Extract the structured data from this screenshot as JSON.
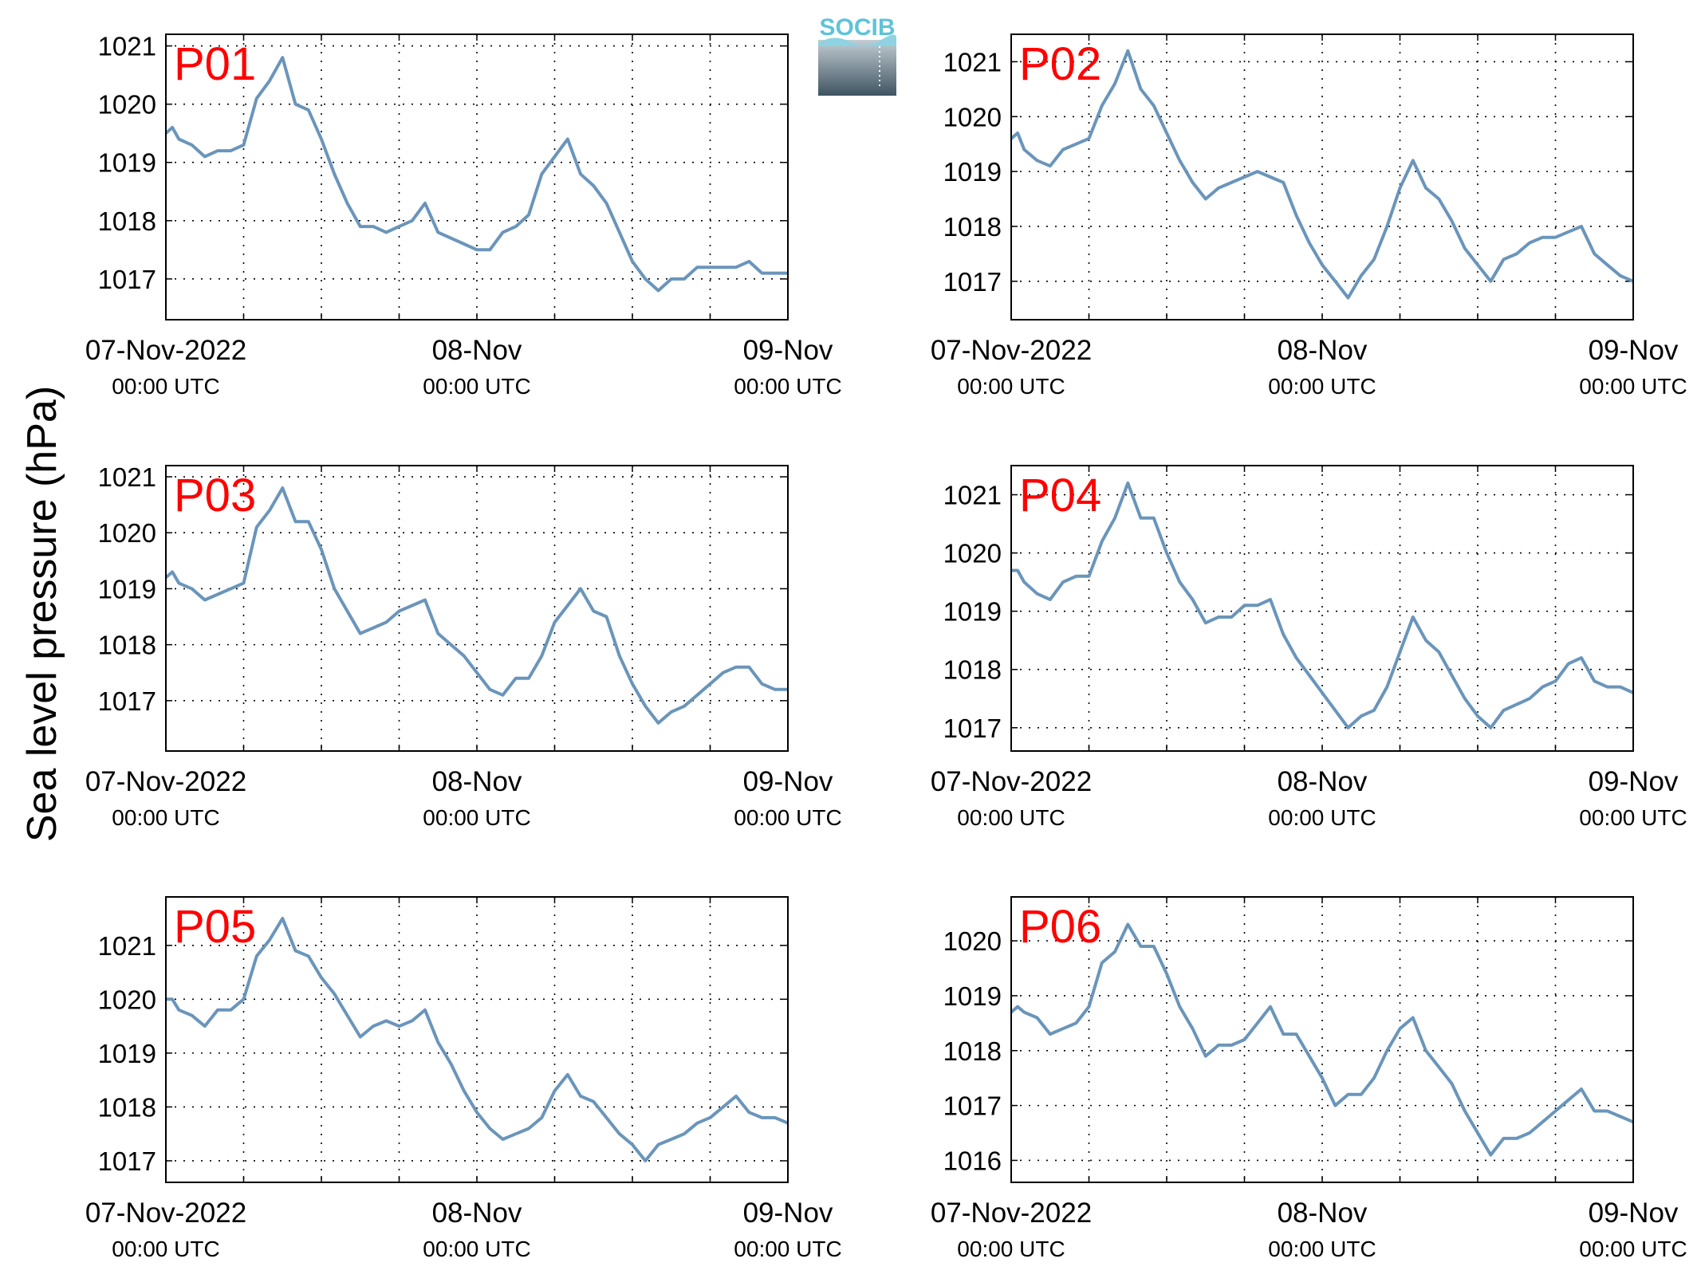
{
  "figure": {
    "ylabel": "Sea level pressure (hPa)",
    "logo_text": "SOCIB",
    "line_color": "#6a95bb",
    "label_color": "#ff0000"
  },
  "chart_data": [
    {
      "type": "line",
      "label": "P01",
      "x_ticks": [
        "07-Nov-2022",
        "08-Nov",
        "09-Nov"
      ],
      "x_subticks": [
        "00:00 UTC",
        "00:00 UTC",
        "00:00 UTC"
      ],
      "x_hours": [
        0,
        48
      ],
      "ylim": [
        1016.3,
        1021.2
      ],
      "yticks": [
        1017,
        1018,
        1019,
        1020,
        1021
      ],
      "grid": true,
      "series": [
        {
          "x": [
            0,
            0.5,
            1,
            2,
            3,
            4,
            5,
            6,
            7,
            8,
            9,
            10,
            11,
            12,
            13,
            14,
            15,
            16,
            17,
            18,
            19,
            20,
            21,
            22,
            23,
            24,
            25,
            26,
            27,
            28,
            29,
            30,
            31,
            32,
            33,
            34,
            35,
            36,
            37,
            38,
            39,
            40,
            41,
            42,
            43,
            44,
            45,
            46,
            47,
            48
          ],
          "y": [
            1019.5,
            1019.6,
            1019.4,
            1019.3,
            1019.1,
            1019.2,
            1019.2,
            1019.3,
            1020.1,
            1020.4,
            1020.8,
            1020.0,
            1019.9,
            1019.4,
            1018.8,
            1018.3,
            1017.9,
            1017.9,
            1017.8,
            1017.9,
            1018.0,
            1018.3,
            1017.8,
            1017.7,
            1017.6,
            1017.5,
            1017.5,
            1017.8,
            1017.9,
            1018.1,
            1018.8,
            1019.1,
            1019.4,
            1018.8,
            1018.6,
            1018.3,
            1017.8,
            1017.3,
            1017.0,
            1016.8,
            1017.0,
            1017.0,
            1017.2,
            1017.2,
            1017.2,
            1017.2,
            1017.3,
            1017.1,
            1017.1,
            1017.1
          ]
        }
      ]
    },
    {
      "type": "line",
      "label": "P02",
      "x_ticks": [
        "07-Nov-2022",
        "08-Nov",
        "09-Nov"
      ],
      "x_subticks": [
        "00:00 UTC",
        "00:00 UTC",
        "00:00 UTC"
      ],
      "x_hours": [
        0,
        48
      ],
      "ylim": [
        1016.3,
        1021.5
      ],
      "yticks": [
        1017,
        1018,
        1019,
        1020,
        1021
      ],
      "grid": true,
      "series": [
        {
          "x": [
            0,
            0.5,
            1,
            2,
            3,
            4,
            5,
            6,
            7,
            8,
            9,
            10,
            11,
            12,
            13,
            14,
            15,
            16,
            17,
            18,
            19,
            20,
            21,
            22,
            23,
            24,
            25,
            26,
            27,
            28,
            29,
            30,
            31,
            32,
            33,
            34,
            35,
            36,
            37,
            38,
            39,
            40,
            41,
            42,
            43,
            44,
            45,
            46,
            47,
            48
          ],
          "y": [
            1019.6,
            1019.7,
            1019.4,
            1019.2,
            1019.1,
            1019.4,
            1019.5,
            1019.6,
            1020.2,
            1020.6,
            1021.2,
            1020.5,
            1020.2,
            1019.7,
            1019.2,
            1018.8,
            1018.5,
            1018.7,
            1018.8,
            1018.9,
            1019.0,
            1018.9,
            1018.8,
            1018.2,
            1017.7,
            1017.3,
            1017.0,
            1016.7,
            1017.1,
            1017.4,
            1018.0,
            1018.7,
            1019.2,
            1018.7,
            1018.5,
            1018.1,
            1017.6,
            1017.3,
            1017.0,
            1017.4,
            1017.5,
            1017.7,
            1017.8,
            1017.8,
            1017.9,
            1018.0,
            1017.5,
            1017.3,
            1017.1,
            1017.0
          ]
        }
      ]
    },
    {
      "type": "line",
      "label": "P03",
      "x_ticks": [
        "07-Nov-2022",
        "08-Nov",
        "09-Nov"
      ],
      "x_subticks": [
        "00:00 UTC",
        "00:00 UTC",
        "00:00 UTC"
      ],
      "x_hours": [
        0,
        48
      ],
      "ylim": [
        1016.1,
        1021.2
      ],
      "yticks": [
        1017,
        1018,
        1019,
        1020,
        1021
      ],
      "grid": true,
      "series": [
        {
          "x": [
            0,
            0.5,
            1,
            2,
            3,
            4,
            5,
            6,
            7,
            8,
            9,
            10,
            11,
            12,
            13,
            14,
            15,
            16,
            17,
            18,
            19,
            20,
            21,
            22,
            23,
            24,
            25,
            26,
            27,
            28,
            29,
            30,
            31,
            32,
            33,
            34,
            35,
            36,
            37,
            38,
            39,
            40,
            41,
            42,
            43,
            44,
            45,
            46,
            47,
            48
          ],
          "y": [
            1019.2,
            1019.3,
            1019.1,
            1019.0,
            1018.8,
            1018.9,
            1019.0,
            1019.1,
            1020.1,
            1020.4,
            1020.8,
            1020.2,
            1020.2,
            1019.7,
            1019.0,
            1018.6,
            1018.2,
            1018.3,
            1018.4,
            1018.6,
            1018.7,
            1018.8,
            1018.2,
            1018.0,
            1017.8,
            1017.5,
            1017.2,
            1017.1,
            1017.4,
            1017.4,
            1017.8,
            1018.4,
            1018.7,
            1019.0,
            1018.6,
            1018.5,
            1017.8,
            1017.3,
            1016.9,
            1016.6,
            1016.8,
            1016.9,
            1017.1,
            1017.3,
            1017.5,
            1017.6,
            1017.6,
            1017.3,
            1017.2,
            1017.2
          ]
        }
      ]
    },
    {
      "type": "line",
      "label": "P04",
      "x_ticks": [
        "07-Nov-2022",
        "08-Nov",
        "09-Nov"
      ],
      "x_subticks": [
        "00:00 UTC",
        "00:00 UTC",
        "00:00 UTC"
      ],
      "x_hours": [
        0,
        48
      ],
      "ylim": [
        1016.6,
        1021.5
      ],
      "yticks": [
        1017,
        1018,
        1019,
        1020,
        1021
      ],
      "grid": true,
      "series": [
        {
          "x": [
            0,
            0.5,
            1,
            2,
            3,
            4,
            5,
            6,
            7,
            8,
            9,
            10,
            11,
            12,
            13,
            14,
            15,
            16,
            17,
            18,
            19,
            20,
            21,
            22,
            23,
            24,
            25,
            26,
            27,
            28,
            29,
            30,
            31,
            32,
            33,
            34,
            35,
            36,
            37,
            38,
            39,
            40,
            41,
            42,
            43,
            44,
            45,
            46,
            47,
            48
          ],
          "y": [
            1019.7,
            1019.7,
            1019.5,
            1019.3,
            1019.2,
            1019.5,
            1019.6,
            1019.6,
            1020.2,
            1020.6,
            1021.2,
            1020.6,
            1020.6,
            1020.0,
            1019.5,
            1019.2,
            1018.8,
            1018.9,
            1018.9,
            1019.1,
            1019.1,
            1019.2,
            1018.6,
            1018.2,
            1017.9,
            1017.6,
            1017.3,
            1017.0,
            1017.2,
            1017.3,
            1017.7,
            1018.3,
            1018.9,
            1018.5,
            1018.3,
            1017.9,
            1017.5,
            1017.2,
            1017.0,
            1017.3,
            1017.4,
            1017.5,
            1017.7,
            1017.8,
            1018.1,
            1018.2,
            1017.8,
            1017.7,
            1017.7,
            1017.6
          ]
        }
      ]
    },
    {
      "type": "line",
      "label": "P05",
      "x_ticks": [
        "07-Nov-2022",
        "08-Nov",
        "09-Nov"
      ],
      "x_subticks": [
        "00:00 UTC",
        "00:00 UTC",
        "00:00 UTC"
      ],
      "x_hours": [
        0,
        48
      ],
      "ylim": [
        1016.6,
        1021.9
      ],
      "yticks": [
        1017,
        1018,
        1019,
        1020,
        1021
      ],
      "grid": true,
      "series": [
        {
          "x": [
            0,
            0.5,
            1,
            2,
            3,
            4,
            5,
            6,
            7,
            8,
            9,
            10,
            11,
            12,
            13,
            14,
            15,
            16,
            17,
            18,
            19,
            20,
            21,
            22,
            23,
            24,
            25,
            26,
            27,
            28,
            29,
            30,
            31,
            32,
            33,
            34,
            35,
            36,
            37,
            38,
            39,
            40,
            41,
            42,
            43,
            44,
            45,
            46,
            47,
            48
          ],
          "y": [
            1020.0,
            1020.0,
            1019.8,
            1019.7,
            1019.5,
            1019.8,
            1019.8,
            1020.0,
            1020.8,
            1021.1,
            1021.5,
            1020.9,
            1020.8,
            1020.4,
            1020.1,
            1019.7,
            1019.3,
            1019.5,
            1019.6,
            1019.5,
            1019.6,
            1019.8,
            1019.2,
            1018.8,
            1018.3,
            1017.9,
            1017.6,
            1017.4,
            1017.5,
            1017.6,
            1017.8,
            1018.3,
            1018.6,
            1018.2,
            1018.1,
            1017.8,
            1017.5,
            1017.3,
            1017.0,
            1017.3,
            1017.4,
            1017.5,
            1017.7,
            1017.8,
            1018.0,
            1018.2,
            1017.9,
            1017.8,
            1017.8,
            1017.7
          ]
        }
      ]
    },
    {
      "type": "line",
      "label": "P06",
      "x_ticks": [
        "07-Nov-2022",
        "08-Nov",
        "09-Nov"
      ],
      "x_subticks": [
        "00:00 UTC",
        "00:00 UTC",
        "00:00 UTC"
      ],
      "x_hours": [
        0,
        48
      ],
      "ylim": [
        1015.6,
        1020.8
      ],
      "yticks": [
        1016,
        1017,
        1018,
        1019,
        1020
      ],
      "grid": true,
      "series": [
        {
          "x": [
            0,
            0.5,
            1,
            2,
            3,
            4,
            5,
            6,
            7,
            8,
            9,
            10,
            11,
            12,
            13,
            14,
            15,
            16,
            17,
            18,
            19,
            20,
            21,
            22,
            23,
            24,
            25,
            26,
            27,
            28,
            29,
            30,
            31,
            32,
            33,
            34,
            35,
            36,
            37,
            38,
            39,
            40,
            41,
            42,
            43,
            44,
            45,
            46,
            47,
            48
          ],
          "y": [
            1018.7,
            1018.8,
            1018.7,
            1018.6,
            1018.3,
            1018.4,
            1018.5,
            1018.8,
            1019.6,
            1019.8,
            1020.3,
            1019.9,
            1019.9,
            1019.4,
            1018.8,
            1018.4,
            1017.9,
            1018.1,
            1018.1,
            1018.2,
            1018.5,
            1018.8,
            1018.3,
            1018.3,
            1017.9,
            1017.5,
            1017.0,
            1017.2,
            1017.2,
            1017.5,
            1018.0,
            1018.4,
            1018.6,
            1018.0,
            1017.7,
            1017.4,
            1016.9,
            1016.5,
            1016.1,
            1016.4,
            1016.4,
            1016.5,
            1016.7,
            1016.9,
            1017.1,
            1017.3,
            1016.9,
            1016.9,
            1016.8,
            1016.7
          ]
        }
      ]
    }
  ]
}
